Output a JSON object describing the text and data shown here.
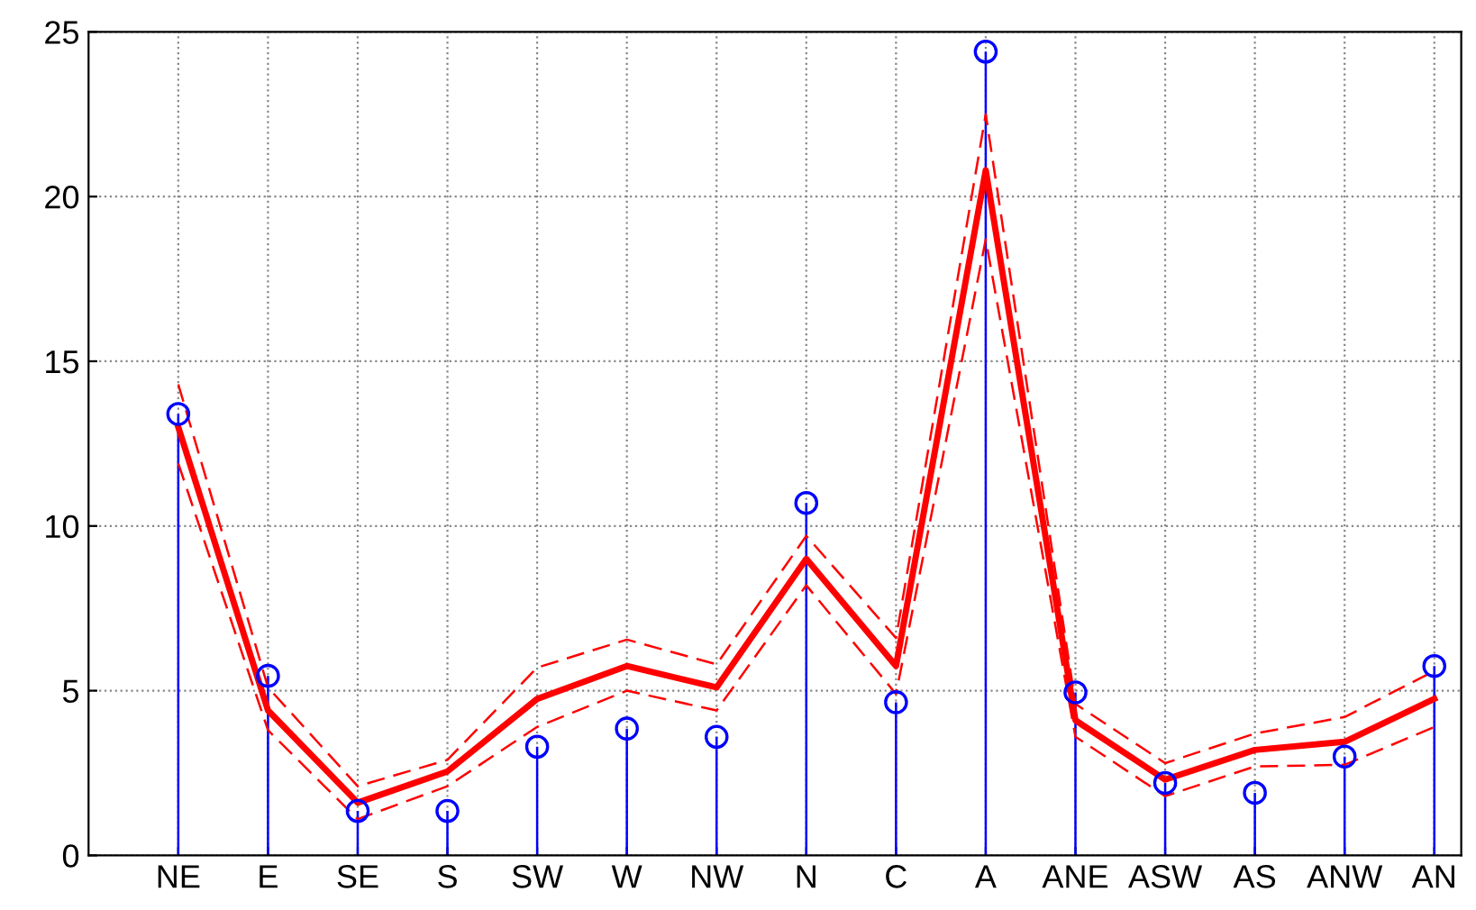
{
  "chart_data": {
    "type": "line",
    "categories": [
      "NE",
      "E",
      "SE",
      "S",
      "SW",
      "W",
      "NW",
      "N",
      "C",
      "A",
      "ANE",
      "ASW",
      "AS",
      "ANW",
      "AN"
    ],
    "series": [
      {
        "type": "lollipop",
        "color": "#0000ff",
        "marker": "circle",
        "values": [
          13.4,
          5.45,
          1.35,
          1.35,
          3.3,
          3.85,
          3.6,
          10.7,
          4.65,
          24.4,
          4.95,
          2.2,
          1.9,
          3.0,
          5.75
        ]
      },
      {
        "color": "#ff0000",
        "line_style": "solid",
        "values": [
          13.0,
          4.4,
          1.6,
          2.55,
          4.75,
          5.75,
          5.1,
          9.0,
          5.75,
          20.8,
          4.1,
          2.3,
          3.2,
          3.45,
          4.75
        ]
      },
      {
        "color": "#ff0000",
        "line_style": "dashed",
        "values": [
          11.9,
          3.8,
          1.1,
          2.1,
          3.9,
          5.0,
          4.4,
          8.2,
          4.9,
          18.7,
          3.6,
          1.8,
          2.7,
          2.75,
          3.9
        ]
      },
      {
        "color": "#ff0000",
        "line_style": "dashed",
        "values": [
          14.3,
          5.1,
          2.1,
          2.9,
          5.7,
          6.55,
          5.8,
          9.7,
          6.6,
          22.5,
          4.6,
          2.8,
          3.7,
          4.2,
          5.6
        ]
      }
    ],
    "ylim": [
      0,
      25
    ],
    "yticks": [
      0,
      5,
      10,
      15,
      20,
      25
    ],
    "grid": true,
    "legend": false
  }
}
